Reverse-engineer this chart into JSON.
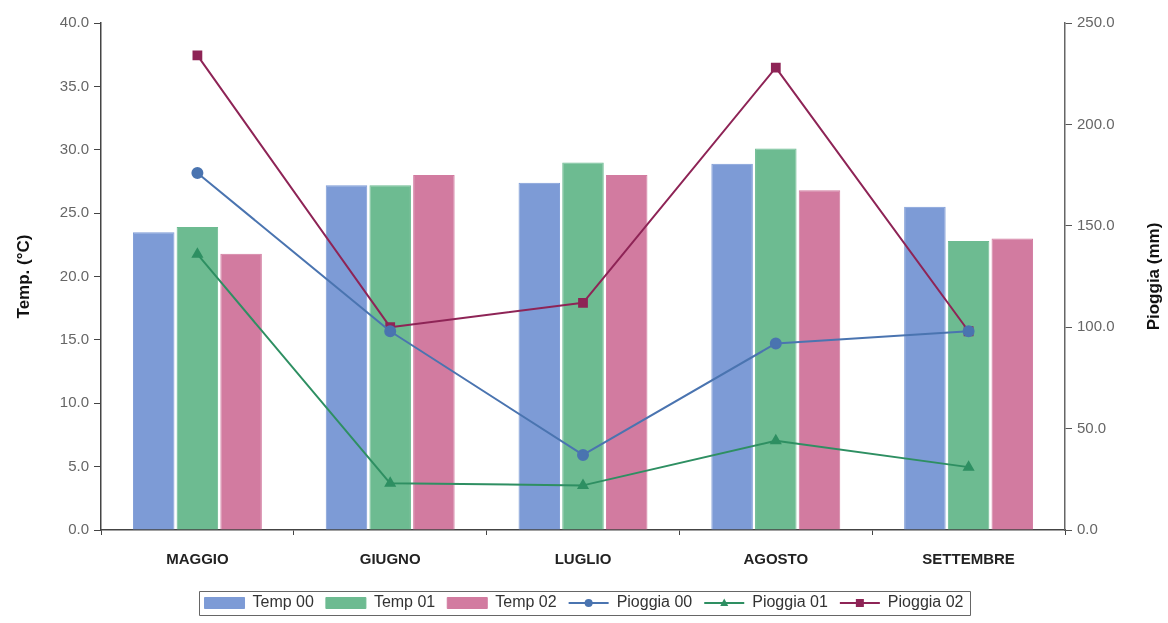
{
  "chart_data": {
    "type": "bar",
    "categories": [
      "MAGGIO",
      "GIUGNO",
      "LUGLIO",
      "AGOSTO",
      "SETTEMBRE"
    ],
    "series": [
      {
        "name": "Temp 00",
        "color": "#7d9bd6",
        "values": [
          23.5,
          27.2,
          27.4,
          28.9,
          25.5
        ]
      },
      {
        "name": "Temp 01",
        "color": "#6dbb91",
        "values": [
          23.9,
          27.2,
          29.0,
          30.1,
          22.8
        ]
      },
      {
        "name": "Temp 02",
        "color": "#d27ba0",
        "values": [
          21.8,
          28.0,
          28.0,
          26.8,
          23.0
        ]
      },
      {
        "name": "Pioggia 00",
        "type": "line",
        "axis": "y2",
        "color": "#4a74b0",
        "marker": "circle",
        "values": [
          176,
          98,
          37,
          92,
          98
        ]
      },
      {
        "name": "Pioggia 01",
        "type": "line",
        "axis": "y2",
        "color": "#2e8f62",
        "marker": "triangle",
        "values": [
          136,
          23,
          22,
          44,
          31
        ]
      },
      {
        "name": "Pioggia 02",
        "type": "line",
        "axis": "y2",
        "color": "#8e2456",
        "marker": "square",
        "values": [
          234,
          100,
          112,
          228,
          98
        ]
      }
    ],
    "ylabel": "Temp. (°C)",
    "y2label": "Pioggia (mm)",
    "ylim": [
      0,
      40
    ],
    "yticks": [
      {
        "value": 0,
        "label": "0.0"
      },
      {
        "value": 5,
        "label": "5.0"
      },
      {
        "value": 10,
        "label": "10.0"
      },
      {
        "value": 15,
        "label": "15.0"
      },
      {
        "value": 20,
        "label": "20.0"
      },
      {
        "value": 25,
        "label": "25.0"
      },
      {
        "value": 30,
        "label": "30.0"
      },
      {
        "value": 35,
        "label": "35.0"
      },
      {
        "value": 40,
        "label": "40.0"
      }
    ],
    "y2lim": [
      0,
      250
    ],
    "y2ticks": [
      {
        "value": 0,
        "label": "0.0"
      },
      {
        "value": 50,
        "label": "50.0"
      },
      {
        "value": 100,
        "label": "100.0"
      },
      {
        "value": 150,
        "label": "150.0"
      },
      {
        "value": 200,
        "label": "200.0"
      },
      {
        "value": 250,
        "label": "250.0"
      }
    ],
    "grid": false,
    "legend": "bottom"
  }
}
